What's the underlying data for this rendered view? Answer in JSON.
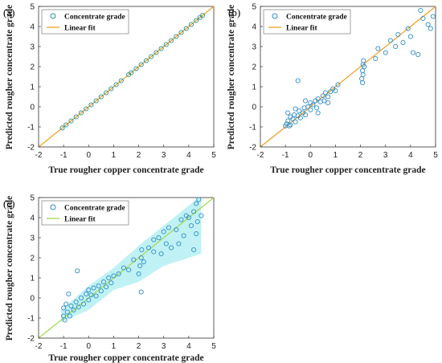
{
  "figure": {
    "xlabel": "True rougher copper concentrate grade",
    "ylabel": "Predicted rougher concentrate grade",
    "legend": {
      "scatter": "Concentrate grade",
      "line": "Linear fit"
    },
    "colors": {
      "marker": "#2d8cc8",
      "marker_a": "#2a8f8f",
      "fit_line": "#f0a020",
      "fill_c": "#8de8ec"
    }
  },
  "chart_data": [
    {
      "type": "scatter",
      "panel": "(a)",
      "xlim": [
        -2,
        5
      ],
      "ylim": [
        -2,
        5
      ],
      "xticks": [
        -2,
        -1,
        0,
        1,
        2,
        3,
        4,
        5
      ],
      "yticks": [
        -2,
        -1,
        0,
        1,
        2,
        3,
        4,
        5
      ],
      "fit_line": [
        [
          -2,
          -2
        ],
        [
          5,
          5
        ]
      ],
      "legend_position": "top-left",
      "points": [
        [
          -1.05,
          -1.05
        ],
        [
          -0.9,
          -0.9
        ],
        [
          -0.7,
          -0.7
        ],
        [
          -0.5,
          -0.5
        ],
        [
          -0.3,
          -0.3
        ],
        [
          -0.1,
          -0.1
        ],
        [
          0.1,
          0.1
        ],
        [
          0.3,
          0.3
        ],
        [
          0.5,
          0.5
        ],
        [
          0.7,
          0.7
        ],
        [
          0.9,
          0.9
        ],
        [
          1.1,
          1.1
        ],
        [
          1.3,
          1.3
        ],
        [
          1.6,
          1.6
        ],
        [
          1.7,
          1.7
        ],
        [
          1.9,
          1.9
        ],
        [
          2.1,
          2.1
        ],
        [
          2.3,
          2.3
        ],
        [
          2.5,
          2.5
        ],
        [
          2.7,
          2.7
        ],
        [
          2.9,
          2.9
        ],
        [
          3.1,
          3.1
        ],
        [
          3.3,
          3.3
        ],
        [
          3.5,
          3.5
        ],
        [
          3.7,
          3.7
        ],
        [
          3.9,
          3.9
        ],
        [
          4.1,
          4.1
        ],
        [
          4.3,
          4.3
        ],
        [
          4.45,
          4.45
        ],
        [
          4.55,
          4.55
        ]
      ]
    },
    {
      "type": "scatter",
      "panel": "(b)",
      "xlim": [
        -2,
        5
      ],
      "ylim": [
        -2,
        5
      ],
      "xticks": [
        -2,
        -1,
        0,
        1,
        2,
        3,
        4,
        5
      ],
      "yticks": [
        -2,
        -1,
        0,
        1,
        2,
        3,
        4,
        5
      ],
      "fit_line": [
        [
          -2,
          -2
        ],
        [
          5,
          5
        ]
      ],
      "legend_position": "top-left",
      "points": [
        [
          -1.0,
          -0.95
        ],
        [
          -0.95,
          -0.85
        ],
        [
          -0.9,
          -0.7
        ],
        [
          -0.85,
          -0.95
        ],
        [
          -0.8,
          -0.5
        ],
        [
          -0.8,
          -0.9
        ],
        [
          -0.7,
          -0.6
        ],
        [
          -0.65,
          -0.4
        ],
        [
          -0.6,
          -0.75
        ],
        [
          -0.5,
          -0.45
        ],
        [
          -0.45,
          -0.2
        ],
        [
          -0.4,
          -0.55
        ],
        [
          -0.3,
          -0.3
        ],
        [
          -0.25,
          -0.05
        ],
        [
          -0.2,
          -0.4
        ],
        [
          -0.1,
          0.0
        ],
        [
          0.0,
          -0.15
        ],
        [
          0.0,
          0.2
        ],
        [
          0.1,
          0.1
        ],
        [
          0.2,
          0.3
        ],
        [
          0.25,
          -0.05
        ],
        [
          0.3,
          0.4
        ],
        [
          0.4,
          0.25
        ],
        [
          0.5,
          0.55
        ],
        [
          0.55,
          0.3
        ],
        [
          0.6,
          0.7
        ],
        [
          0.7,
          0.5
        ],
        [
          0.8,
          0.75
        ],
        [
          0.9,
          0.9
        ],
        [
          1.0,
          0.8
        ],
        [
          1.1,
          1.1
        ],
        [
          -0.5,
          1.3
        ],
        [
          2.05,
          1.4
        ],
        [
          2.08,
          1.8
        ],
        [
          2.1,
          2.1
        ],
        [
          2.12,
          2.3
        ],
        [
          2.1,
          1.6
        ],
        [
          2.15,
          2.0
        ],
        [
          2.08,
          1.2
        ],
        [
          2.6,
          2.4
        ],
        [
          2.7,
          2.9
        ],
        [
          3.0,
          2.7
        ],
        [
          3.2,
          3.3
        ],
        [
          3.4,
          3.0
        ],
        [
          3.5,
          3.6
        ],
        [
          3.7,
          3.2
        ],
        [
          3.9,
          3.9
        ],
        [
          4.0,
          3.5
        ],
        [
          4.1,
          2.7
        ],
        [
          4.3,
          2.6
        ],
        [
          4.4,
          4.8
        ],
        [
          4.5,
          4.4
        ],
        [
          4.7,
          4.1
        ],
        [
          4.8,
          3.9
        ],
        [
          4.9,
          4.5
        ],
        [
          -0.6,
          -0.1
        ],
        [
          -0.9,
          -0.3
        ],
        [
          0.3,
          -0.3
        ],
        [
          -0.2,
          0.3
        ],
        [
          0.7,
          0.2
        ]
      ]
    },
    {
      "type": "scatter",
      "panel": "(c)",
      "xlim": [
        -2,
        5
      ],
      "ylim": [
        -2,
        5
      ],
      "xticks": [
        -2,
        -1,
        0,
        1,
        2,
        3,
        4,
        5
      ],
      "yticks": [
        -2,
        -1,
        0,
        1,
        2,
        3,
        4,
        5
      ],
      "fit_line": [
        [
          -2,
          -2
        ],
        [
          5,
          5
        ]
      ],
      "legend_position": "top-left",
      "points": [
        [
          -1.0,
          -0.9
        ],
        [
          -1.0,
          -0.5
        ],
        [
          -0.95,
          -1.1
        ],
        [
          -0.9,
          -0.3
        ],
        [
          -0.85,
          -0.7
        ],
        [
          -0.8,
          0.2
        ],
        [
          -0.75,
          -0.9
        ],
        [
          -0.7,
          -0.4
        ],
        [
          -0.6,
          -0.6
        ],
        [
          -0.5,
          -0.2
        ],
        [
          -0.45,
          1.35
        ],
        [
          -0.4,
          -0.45
        ],
        [
          -0.3,
          0.0
        ],
        [
          -0.2,
          -0.3
        ],
        [
          -0.1,
          0.2
        ],
        [
          0.0,
          -0.1
        ],
        [
          0.0,
          0.4
        ],
        [
          0.1,
          0.15
        ],
        [
          0.2,
          0.5
        ],
        [
          0.3,
          0.1
        ],
        [
          0.4,
          0.6
        ],
        [
          0.5,
          0.35
        ],
        [
          0.6,
          0.8
        ],
        [
          0.7,
          0.55
        ],
        [
          0.8,
          1.0
        ],
        [
          0.9,
          0.75
        ],
        [
          1.0,
          1.1
        ],
        [
          1.2,
          1.2
        ],
        [
          1.4,
          1.5
        ],
        [
          1.6,
          1.4
        ],
        [
          1.8,
          1.9
        ],
        [
          2.0,
          1.2
        ],
        [
          2.05,
          1.6
        ],
        [
          2.1,
          2.0
        ],
        [
          2.12,
          2.4
        ],
        [
          2.1,
          0.3
        ],
        [
          2.2,
          1.8
        ],
        [
          2.4,
          2.5
        ],
        [
          2.6,
          2.3
        ],
        [
          2.8,
          3.0
        ],
        [
          2.9,
          2.2
        ],
        [
          3.0,
          3.3
        ],
        [
          3.1,
          2.7
        ],
        [
          3.2,
          3.5
        ],
        [
          3.3,
          2.5
        ],
        [
          3.5,
          3.4
        ],
        [
          3.6,
          2.7
        ],
        [
          3.7,
          3.9
        ],
        [
          3.8,
          3.1
        ],
        [
          3.9,
          4.1
        ],
        [
          4.0,
          4.0
        ],
        [
          4.1,
          3.6
        ],
        [
          4.2,
          4.3
        ],
        [
          4.3,
          4.7
        ],
        [
          4.3,
          3.2
        ],
        [
          4.4,
          4.9
        ],
        [
          4.5,
          4.1
        ],
        [
          4.2,
          2.4
        ],
        [
          4.35,
          3.8
        ],
        [
          2.6,
          2.9
        ]
      ]
    }
  ]
}
